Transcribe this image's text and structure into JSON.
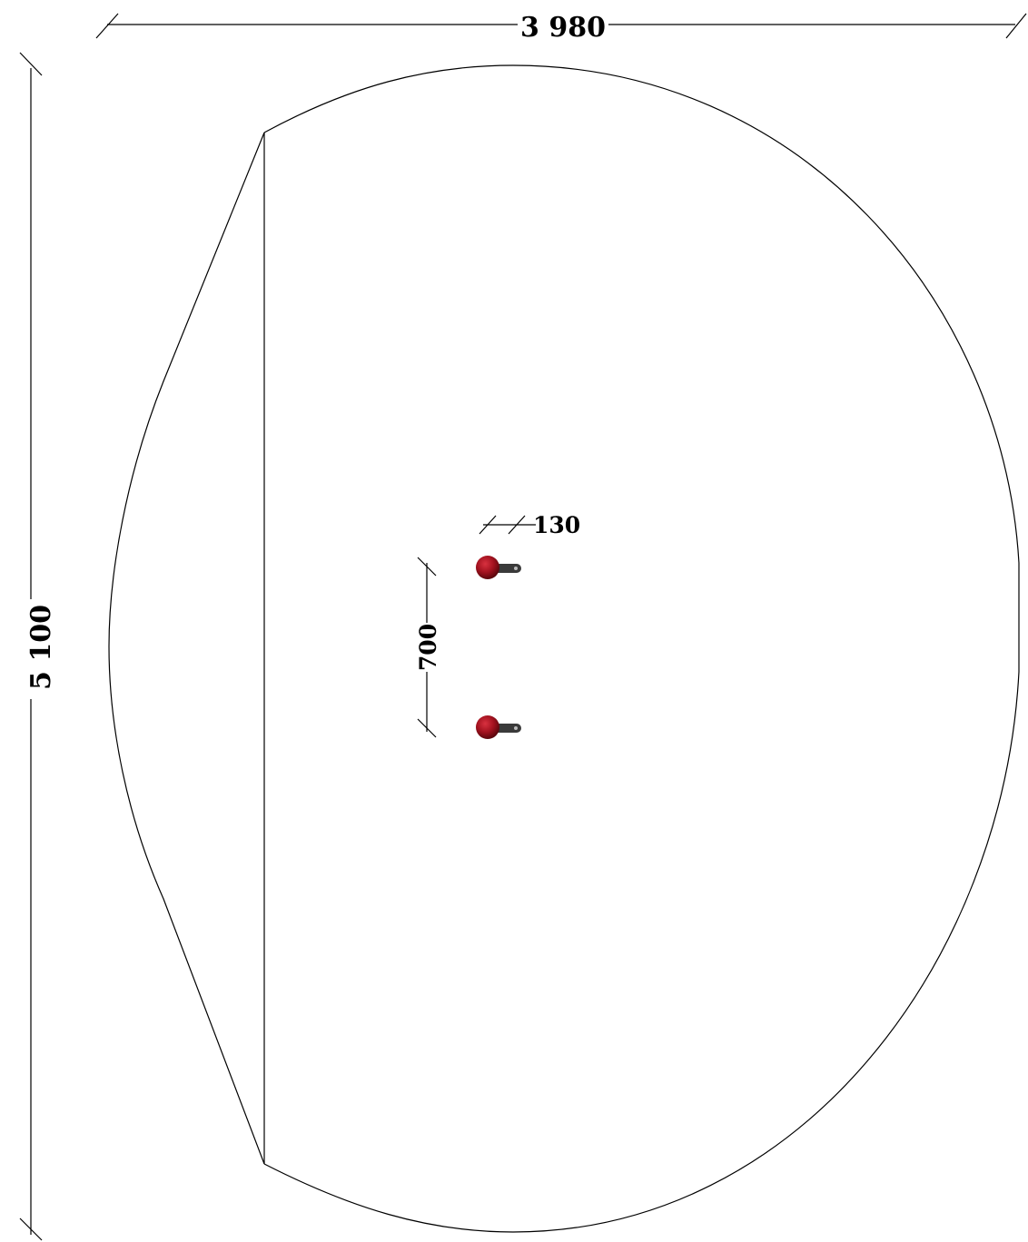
{
  "dimensions": {
    "overall_width": "3 980",
    "overall_height": "5 100",
    "bracket_spacing": "700",
    "bracket_offset": "130"
  },
  "colors": {
    "outline": "#000000",
    "knob": "#a3121f",
    "bracket": "#3a3a3a"
  },
  "icons": {
    "hook": "coat-hook-icon"
  }
}
